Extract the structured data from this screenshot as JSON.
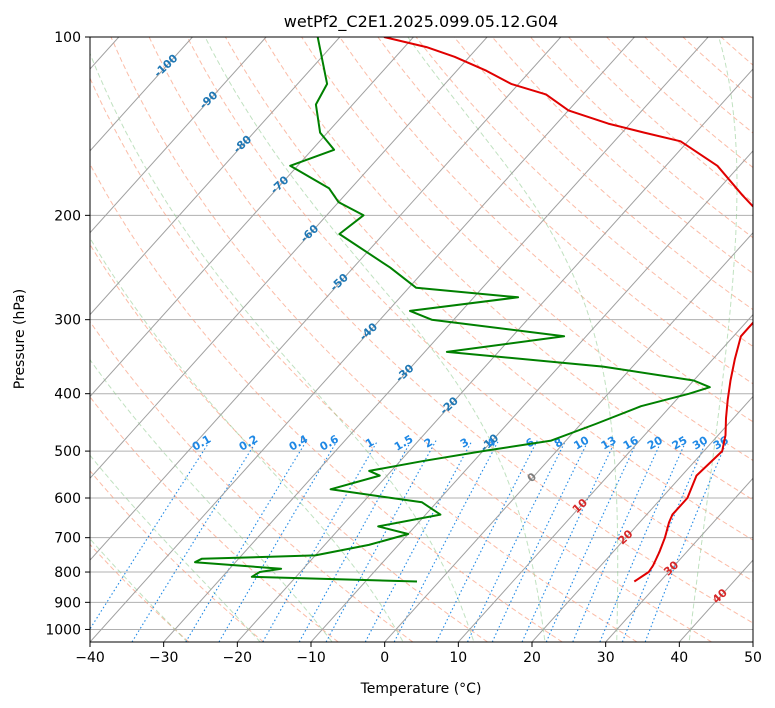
{
  "chart_data": {
    "type": "line",
    "subtype": "skew-t log-p",
    "title": "wetPf2_C2E1.2025.099.05.12.G04",
    "xlabel": "Temperature (°C)",
    "ylabel": "Pressure (hPa)",
    "xlim": [
      -40,
      50
    ],
    "ylim": [
      1050,
      100
    ],
    "y_scale": "log",
    "grid": true,
    "x_ticks": [
      -40,
      -30,
      -20,
      -10,
      0,
      10,
      20,
      30,
      40,
      50
    ],
    "y_ticks": [
      100,
      200,
      300,
      400,
      500,
      600,
      700,
      800,
      900,
      1000
    ],
    "isotherm_labels": [
      {
        "value": -100,
        "text": "-100"
      },
      {
        "value": -90,
        "text": "-90"
      },
      {
        "value": -80,
        "text": "-80"
      },
      {
        "value": -70,
        "text": "-70"
      },
      {
        "value": -60,
        "text": "-60"
      },
      {
        "value": -50,
        "text": "-50"
      },
      {
        "value": -40,
        "text": "-40"
      },
      {
        "value": -30,
        "text": "-30"
      },
      {
        "value": -20,
        "text": "-20"
      },
      {
        "value": -10,
        "text": "-10"
      },
      {
        "value": 0,
        "text": "0"
      },
      {
        "value": 10,
        "text": "10"
      },
      {
        "value": 20,
        "text": "20"
      },
      {
        "value": 30,
        "text": "30"
      },
      {
        "value": 40,
        "text": "40"
      }
    ],
    "mixing_ratio_labels": [
      "0.1",
      "0.2",
      "0.4",
      "0.6",
      "1",
      "1.5",
      "2",
      "3",
      "4",
      "6",
      "8",
      "10",
      "13",
      "16",
      "20",
      "25",
      "30",
      "36"
    ],
    "series": [
      {
        "color": "#e00000",
        "x": [
          26.5,
          27.3,
          27.1,
          26.3,
          25.3,
          24.0,
          23.5,
          23.5,
          22.0,
          22.5,
          21.0,
          19.0,
          17.0,
          15.0,
          13.0,
          11.0,
          11.0,
          11.0,
          10.0,
          7.0,
          4.0,
          -1.0,
          -6.0,
          -13.0,
          -21.0,
          -27.0,
          -33.0,
          -40.0,
          -45.0,
          -51.0,
          -56.0,
          -62.0,
          -67.0,
          -74.0
        ],
        "y": [
          830,
          800,
          780,
          740,
          700,
          660,
          640,
          600,
          550,
          500,
          470,
          440,
          410,
          380,
          350,
          320,
          310,
          295,
          280,
          250,
          230,
          200,
          185,
          165,
          150,
          145,
          140,
          133,
          125,
          120,
          114,
          108,
          104,
          100
        ]
      },
      {
        "color": "#008000",
        "x": [
          -3.0,
          -26.0,
          -25.5,
          -23.0,
          -35.5,
          -35.0,
          -20.0,
          -14.0,
          -10.0,
          -15.0,
          -8.0,
          -12.0,
          -26.0,
          -21.0,
          -23.0,
          -17.0,
          -10.0,
          -2.0,
          2.0,
          6.0,
          11.0,
          13.0,
          10.0,
          -4.0,
          -27.0,
          -13.0,
          -33.0,
          -37.0,
          -24.0,
          -39.0,
          -45.0,
          -56.0,
          -55.0,
          -60.0,
          -63.0,
          -71.0,
          -67.0,
          -71.0,
          -75.0,
          -76.0,
          -83.0
        ],
        "y": [
          830,
          815,
          800,
          790,
          770,
          760,
          750,
          720,
          690,
          670,
          640,
          610,
          580,
          550,
          540,
          520,
          500,
          480,
          450,
          420,
          400,
          390,
          380,
          360,
          340,
          320,
          300,
          290,
          275,
          265,
          245,
          215,
          200,
          190,
          180,
          165,
          155,
          145,
          130,
          120,
          100
        ]
      }
    ]
  }
}
